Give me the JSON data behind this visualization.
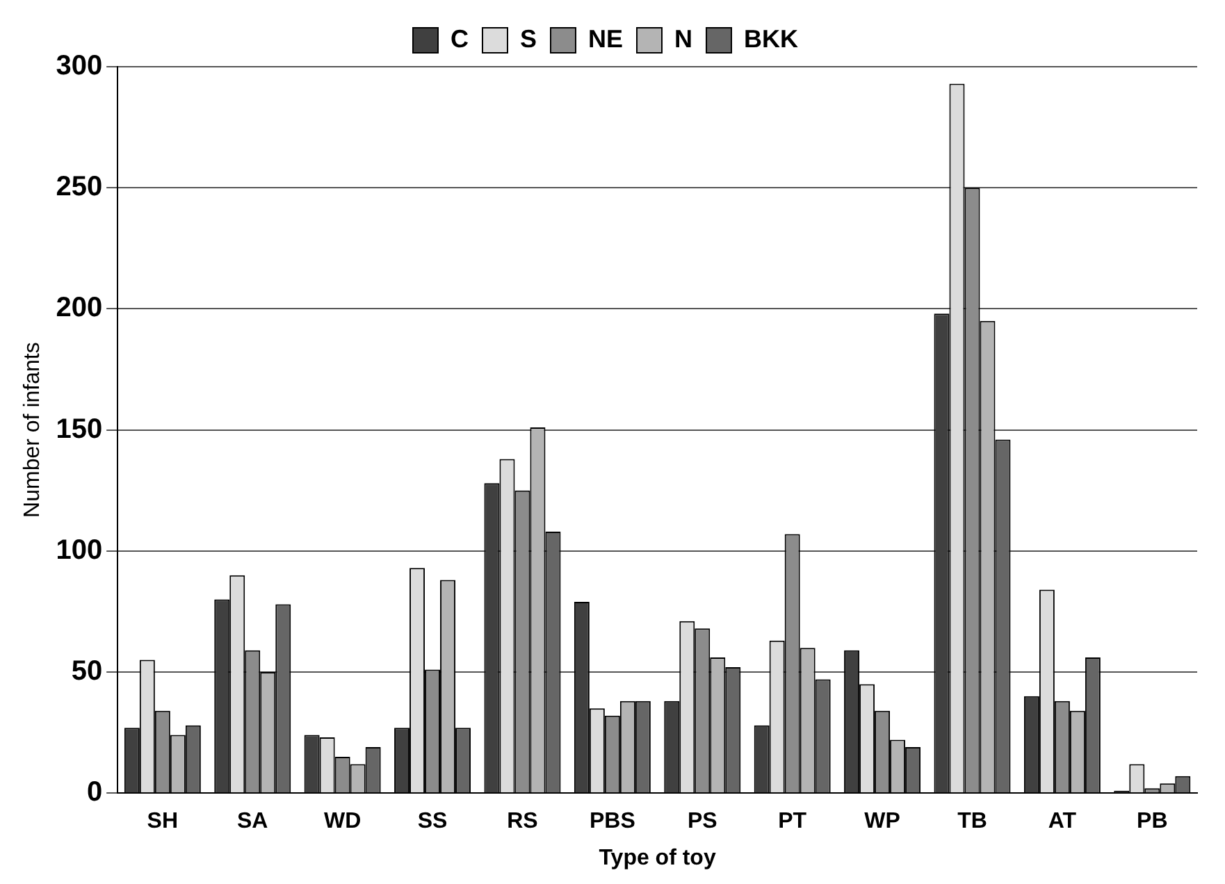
{
  "chart_data": {
    "type": "bar",
    "xlabel": "Type of toy",
    "ylabel": "Number of infants",
    "categories": [
      "SH",
      "SA",
      "WD",
      "SS",
      "RS",
      "PBS",
      "PS",
      "PT",
      "WP",
      "TB",
      "AT",
      "PB"
    ],
    "series": [
      {
        "name": "C",
        "color": "#404040",
        "values": [
          27,
          80,
          24,
          27,
          128,
          79,
          38,
          28,
          59,
          198,
          40,
          1
        ]
      },
      {
        "name": "S",
        "color": "#dcdcdc",
        "values": [
          55,
          90,
          23,
          93,
          138,
          35,
          71,
          63,
          45,
          293,
          84,
          12
        ]
      },
      {
        "name": "NE",
        "color": "#8c8c8c",
        "values": [
          34,
          59,
          15,
          51,
          125,
          32,
          68,
          107,
          34,
          250,
          38,
          2
        ]
      },
      {
        "name": "N",
        "color": "#b4b4b4",
        "values": [
          24,
          50,
          12,
          88,
          151,
          38,
          56,
          60,
          22,
          195,
          34,
          4
        ]
      },
      {
        "name": "BKK",
        "color": "#666666",
        "values": [
          28,
          78,
          19,
          27,
          108,
          38,
          52,
          47,
          19,
          146,
          56,
          7
        ]
      }
    ],
    "ylim": [
      0,
      300
    ],
    "yticks": [
      0,
      50,
      100,
      150,
      200,
      250,
      300
    ],
    "grid": "y",
    "legend": "top"
  }
}
